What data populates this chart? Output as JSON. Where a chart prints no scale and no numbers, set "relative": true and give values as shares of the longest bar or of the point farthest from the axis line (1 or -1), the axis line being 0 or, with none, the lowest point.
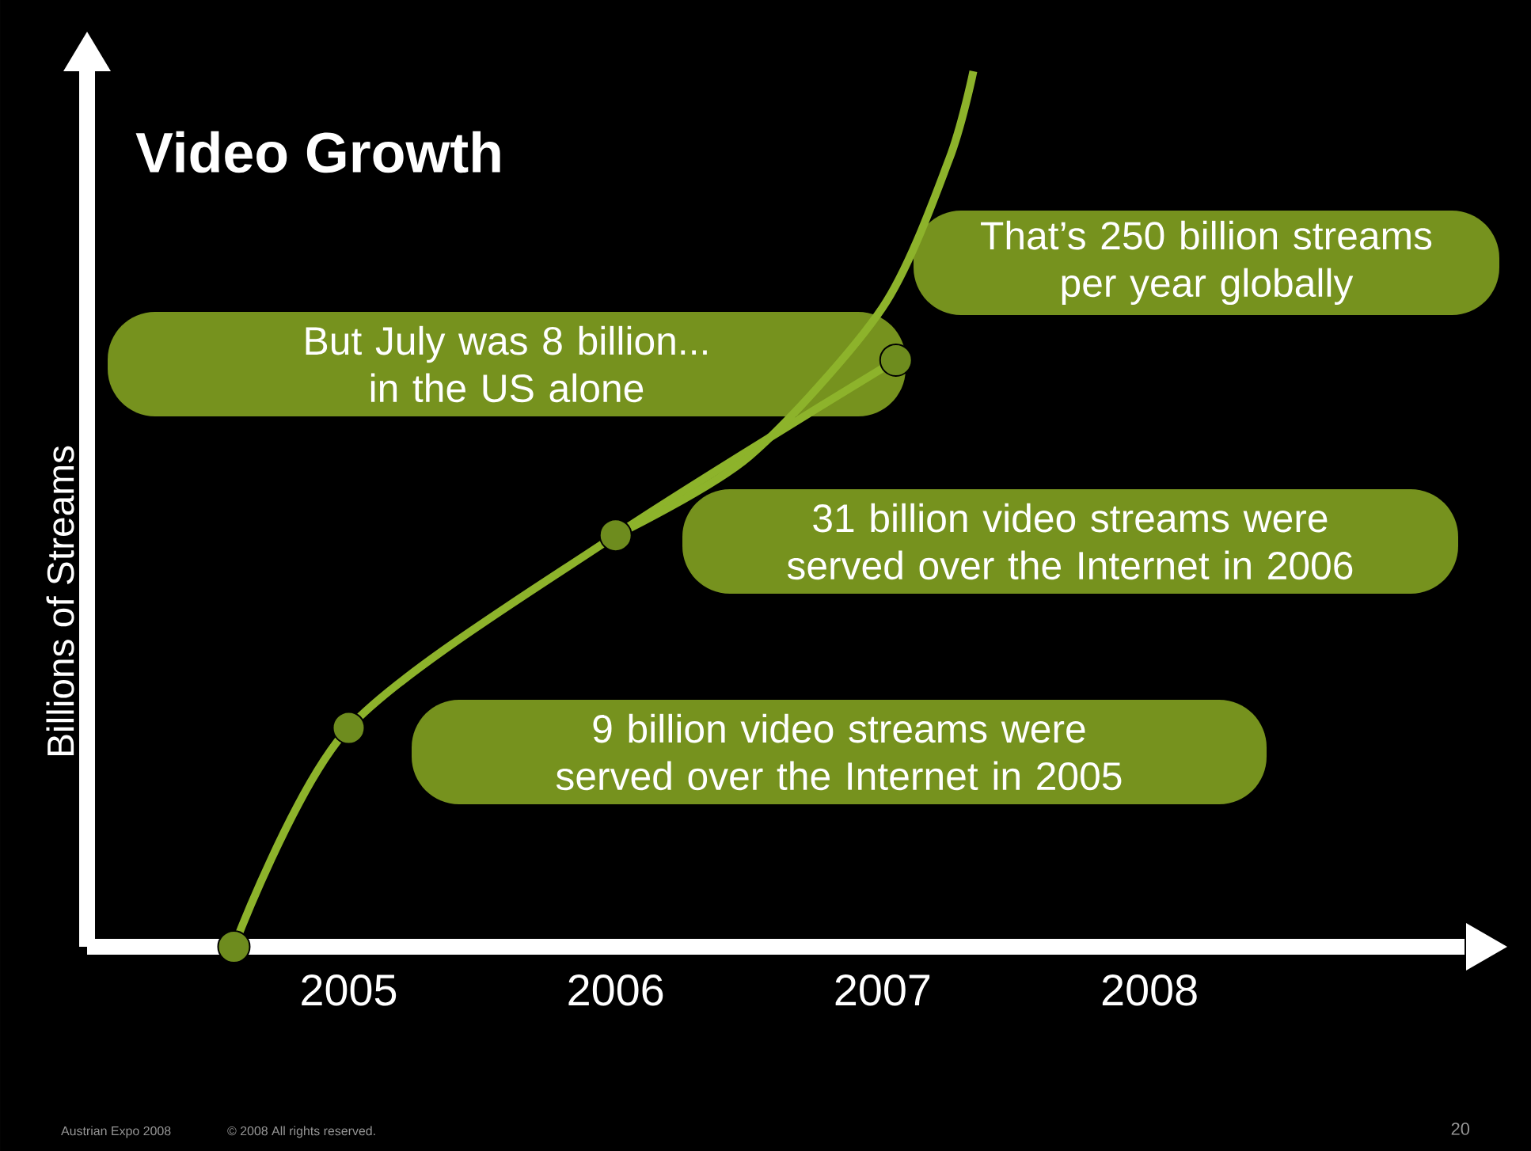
{
  "chart_data": {
    "type": "line",
    "title": "Video Growth",
    "ylabel": "Billions of Streams",
    "relative": true,
    "xlim": [
      2004.02,
      2009.18
    ],
    "xticks": [
      2005,
      2006,
      2007,
      2008
    ],
    "marker": "circle",
    "line_style": "solid",
    "series": [
      {
        "color": "#8db32b",
        "x": [
          2004.57,
          2005,
          2006,
          2007.05
        ],
        "values": [
          0,
          0.25,
          0.47,
          0.67
        ]
      },
      {
        "color": "#8db32b",
        "marker": "none",
        "x": [
          2006,
          2006.5,
          2007,
          2007.25,
          2007.34
        ],
        "values": [
          0.47,
          0.56,
          0.73,
          0.9,
          1.0
        ]
      }
    ],
    "annotations": [
      "That’s 250 billion streams per year globally",
      "But July was 8 billion... in the US alone",
      "31 billion video streams were served over the Internet in 2006",
      "9 billion video streams were served over the Internet in 2005",
      "Austrian Expo 2008",
      "© 2008 All rights reserved.",
      "20"
    ]
  }
}
